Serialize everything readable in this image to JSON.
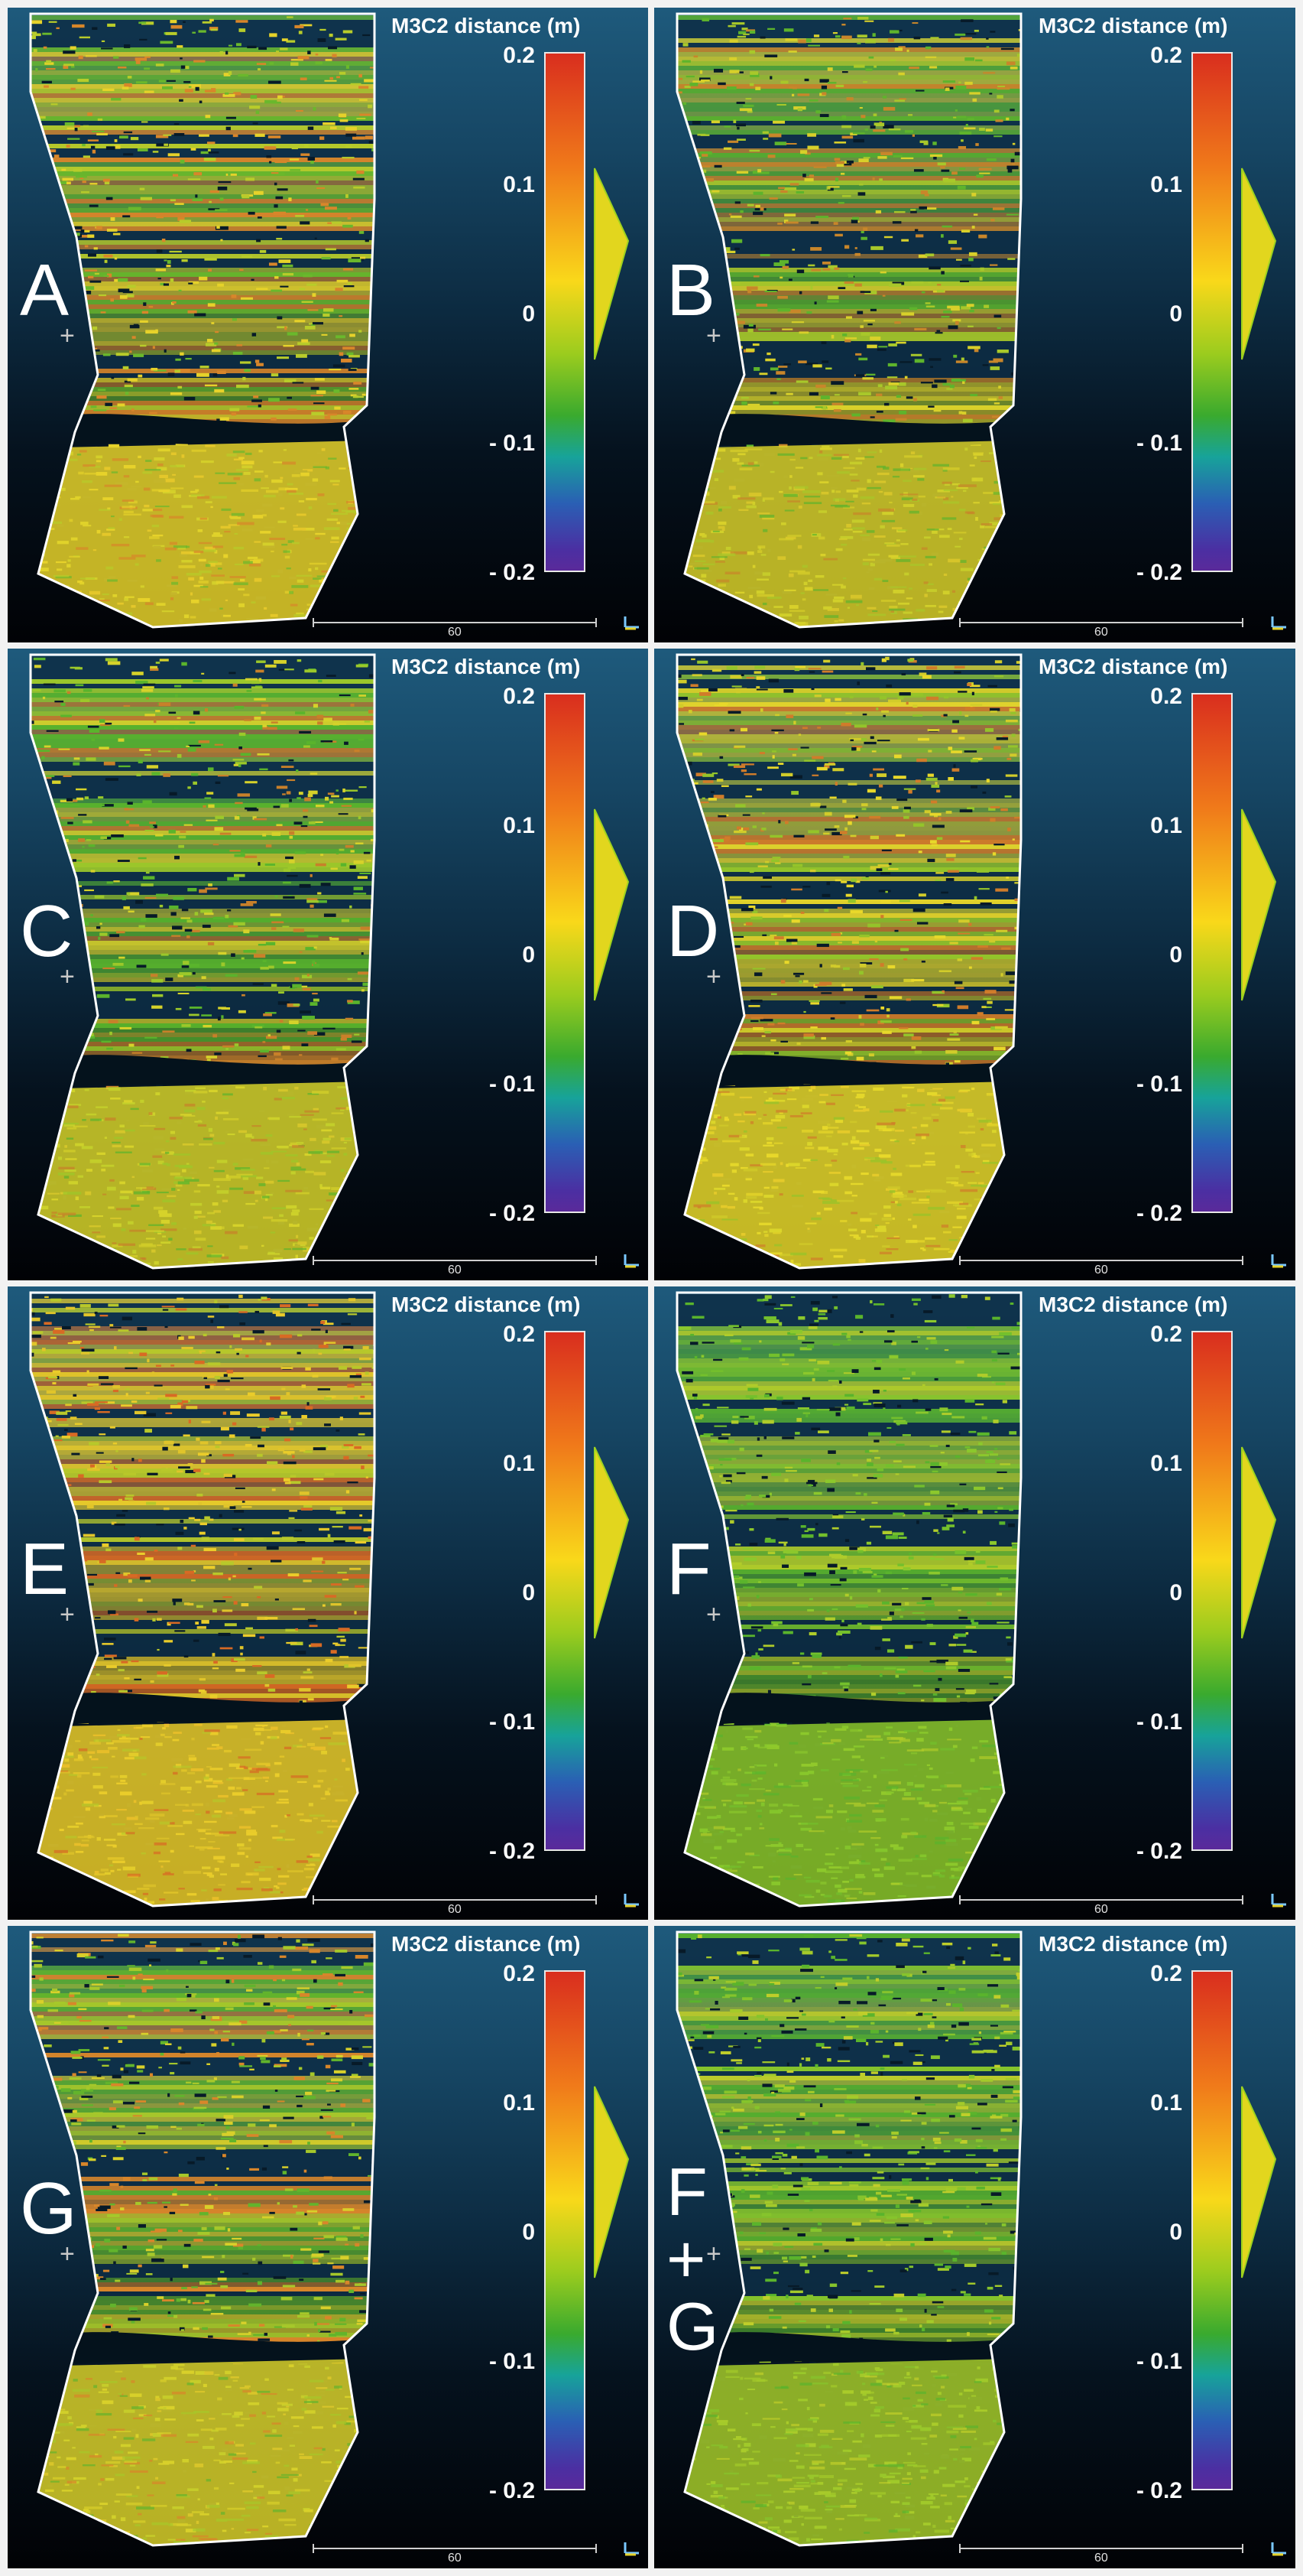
{
  "colorbar": {
    "title": "M3C2 distance (m)",
    "ticks": [
      "0.2",
      "0.1",
      "0",
      "- 0.1",
      "- 0.2"
    ],
    "colors": [
      "#d92e1e",
      "#f07a1a",
      "#f9d81a",
      "#9ccc1e",
      "#3aaa2e",
      "#17a39a",
      "#2a5fb4",
      "#5a2a9a"
    ]
  },
  "scale_bar": {
    "label": "60"
  },
  "panels": [
    {
      "letter": "A",
      "tone": [
        "#b8cc2a",
        "#e6d22a",
        "#d8862a",
        "#6ab82c"
      ]
    },
    {
      "letter": "B",
      "tone": [
        "#a8c82a",
        "#d8d02a",
        "#5eb42c",
        "#c8862a"
      ]
    },
    {
      "letter": "C",
      "tone": [
        "#9cc82a",
        "#d6d22a",
        "#5ab42c",
        "#c8802a"
      ]
    },
    {
      "letter": "D",
      "tone": [
        "#d2cc2a",
        "#e8d82a",
        "#d07c2a",
        "#94c42a"
      ]
    },
    {
      "letter": "E",
      "tone": [
        "#e0c42a",
        "#eacc2a",
        "#d86a24",
        "#b8c82a"
      ]
    },
    {
      "letter": "F",
      "tone": [
        "#74c02c",
        "#8cc82c",
        "#5ab42c",
        "#b0cc2a"
      ]
    },
    {
      "letter": "G",
      "tone": [
        "#a6c82a",
        "#d8d02a",
        "#d8862a",
        "#62b42c"
      ]
    },
    {
      "letter": "F\n+\nG",
      "lines": [
        "F",
        "+",
        "G"
      ],
      "tone": [
        "#86c42c",
        "#a4ca2a",
        "#5ab42c",
        "#c0ce2a"
      ]
    }
  ]
}
